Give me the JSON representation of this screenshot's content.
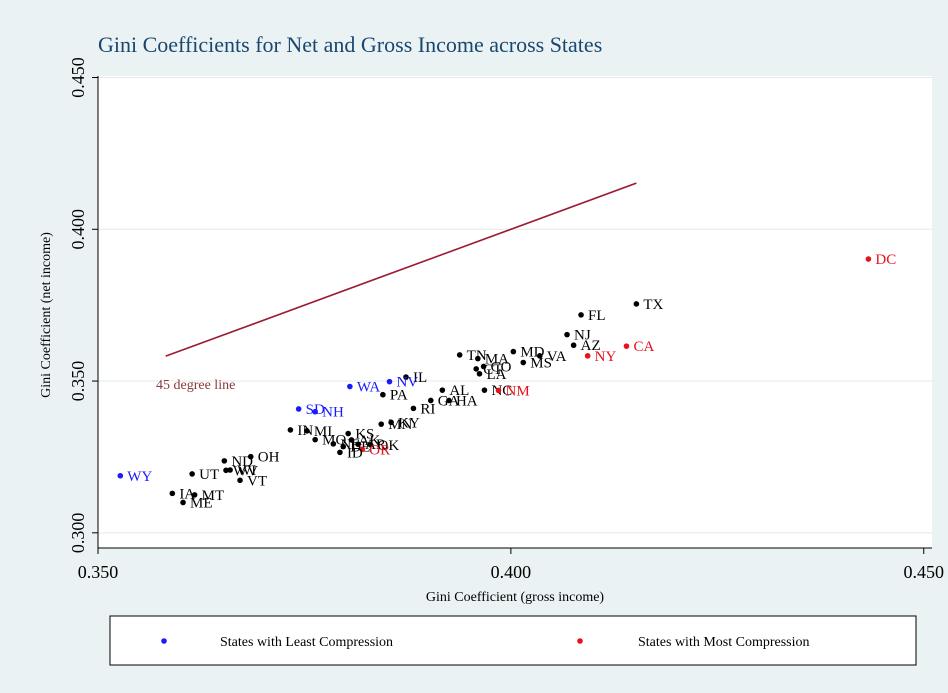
{
  "colors": {
    "background": "#eaf2f3",
    "plot_background": "#ffffff",
    "title": "#1a476f",
    "default_point": "#000000",
    "least_compression": "#1a1aff",
    "most_compression": "#e8101a",
    "line": "#9b1b30",
    "line_label": "#8c3a3a"
  },
  "chart_data": {
    "type": "scatter",
    "title": "Gini Coefficients for Net and Gross Income  across States",
    "xlabel": "Gini Coefficient (gross income)",
    "ylabel": "Gini Coefficient (net income)",
    "xlim": [
      0.35,
      0.451
    ],
    "ylim": [
      0.295,
      0.4505
    ],
    "xticks": [
      "0.350",
      "0.400",
      "0.450"
    ],
    "yticks": [
      "0.300",
      "0.350",
      "0.400",
      "0.450"
    ],
    "xtick_values": [
      0.35,
      0.4,
      0.45
    ],
    "ytick_values": [
      0.3,
      0.35,
      0.4,
      0.45
    ],
    "grid": "horizontal",
    "line": {
      "label": "45 degree line",
      "from": [
        0.3582,
        0.3582
      ],
      "to": [
        0.4152,
        0.4152
      ]
    },
    "legend": {
      "position": "bottom",
      "items": [
        {
          "label": "States with Least Compression",
          "group": "least"
        },
        {
          "label": "States with Most Compression",
          "group": "most"
        }
      ]
    },
    "points": [
      {
        "label": "DC",
        "x": 0.4433,
        "y": 0.3902,
        "group": "most"
      },
      {
        "label": "TX",
        "x": 0.4152,
        "y": 0.3754,
        "group": "default"
      },
      {
        "label": "FL",
        "x": 0.4085,
        "y": 0.3718,
        "group": "default"
      },
      {
        "label": "NJ",
        "x": 0.4068,
        "y": 0.3653,
        "group": "default"
      },
      {
        "label": "AZ",
        "x": 0.4076,
        "y": 0.3618,
        "group": "default"
      },
      {
        "label": "CA",
        "x": 0.414,
        "y": 0.3615,
        "group": "most"
      },
      {
        "label": "NY",
        "x": 0.4093,
        "y": 0.3583,
        "group": "most"
      },
      {
        "label": "VA",
        "x": 0.4035,
        "y": 0.3583,
        "group": "default"
      },
      {
        "label": "MD",
        "x": 0.4003,
        "y": 0.3597,
        "group": "default"
      },
      {
        "label": "MS",
        "x": 0.4015,
        "y": 0.3561,
        "group": "default"
      },
      {
        "label": "TN",
        "x": 0.3938,
        "y": 0.3586,
        "group": "default"
      },
      {
        "label": "MA",
        "x": 0.396,
        "y": 0.3574,
        "group": "default"
      },
      {
        "label": "CT",
        "x": 0.3958,
        "y": 0.354,
        "group": "default"
      },
      {
        "label": "CO",
        "x": 0.3967,
        "y": 0.3548,
        "group": "default"
      },
      {
        "label": "LA",
        "x": 0.3962,
        "y": 0.3524,
        "group": "default"
      },
      {
        "label": "IL",
        "x": 0.3873,
        "y": 0.3513,
        "group": "default"
      },
      {
        "label": "NV",
        "x": 0.3853,
        "y": 0.3498,
        "group": "least"
      },
      {
        "label": "WA",
        "x": 0.3805,
        "y": 0.3482,
        "group": "least"
      },
      {
        "label": "AL",
        "x": 0.3917,
        "y": 0.347,
        "group": "default"
      },
      {
        "label": "NC",
        "x": 0.3968,
        "y": 0.347,
        "group": "default"
      },
      {
        "label": "NM",
        "x": 0.3985,
        "y": 0.3469,
        "group": "most"
      },
      {
        "label": "PA",
        "x": 0.3845,
        "y": 0.3455,
        "group": "default"
      },
      {
        "label": "GA",
        "x": 0.3903,
        "y": 0.3436,
        "group": "default"
      },
      {
        "label": "HA",
        "x": 0.3925,
        "y": 0.3436,
        "group": "default"
      },
      {
        "label": "RI",
        "x": 0.3882,
        "y": 0.341,
        "group": "default"
      },
      {
        "label": "SD",
        "x": 0.3743,
        "y": 0.3408,
        "group": "least"
      },
      {
        "label": "NH",
        "x": 0.3763,
        "y": 0.3399,
        "group": "least"
      },
      {
        "label": "KY",
        "x": 0.3855,
        "y": 0.3364,
        "group": "default"
      },
      {
        "label": "MN",
        "x": 0.3843,
        "y": 0.3358,
        "group": "default"
      },
      {
        "label": "IN",
        "x": 0.3733,
        "y": 0.3339,
        "group": "default"
      },
      {
        "label": "MI",
        "x": 0.3753,
        "y": 0.3336,
        "group": "default"
      },
      {
        "label": "KS",
        "x": 0.3803,
        "y": 0.3327,
        "group": "default"
      },
      {
        "label": "MO",
        "x": 0.3763,
        "y": 0.3307,
        "group": "default"
      },
      {
        "label": "AK",
        "x": 0.3807,
        "y": 0.3306,
        "group": "default"
      },
      {
        "label": "NE",
        "x": 0.3785,
        "y": 0.3293,
        "group": "default"
      },
      {
        "label": "AR",
        "x": 0.3815,
        "y": 0.3292,
        "group": "default"
      },
      {
        "label": "DE",
        "x": 0.3797,
        "y": 0.3284,
        "group": "default"
      },
      {
        "label": "OK",
        "x": 0.383,
        "y": 0.329,
        "group": "default"
      },
      {
        "label": "OR",
        "x": 0.382,
        "y": 0.3275,
        "group": "most"
      },
      {
        "label": "ID",
        "x": 0.3793,
        "y": 0.3265,
        "group": "default"
      },
      {
        "label": "OH",
        "x": 0.3685,
        "y": 0.3251,
        "group": "default"
      },
      {
        "label": "ND",
        "x": 0.3653,
        "y": 0.3237,
        "group": "default"
      },
      {
        "label": "WI",
        "x": 0.366,
        "y": 0.3207,
        "group": "default"
      },
      {
        "label": "WV",
        "x": 0.3655,
        "y": 0.3206,
        "group": "default"
      },
      {
        "label": "UT",
        "x": 0.3614,
        "y": 0.3194,
        "group": "default"
      },
      {
        "label": "WY",
        "x": 0.3527,
        "y": 0.3188,
        "group": "least"
      },
      {
        "label": "VT",
        "x": 0.3672,
        "y": 0.3173,
        "group": "default"
      },
      {
        "label": "IA",
        "x": 0.359,
        "y": 0.313,
        "group": "default"
      },
      {
        "label": "MT",
        "x": 0.3617,
        "y": 0.3125,
        "group": "default"
      },
      {
        "label": "ME",
        "x": 0.3603,
        "y": 0.31,
        "group": "default"
      }
    ]
  }
}
